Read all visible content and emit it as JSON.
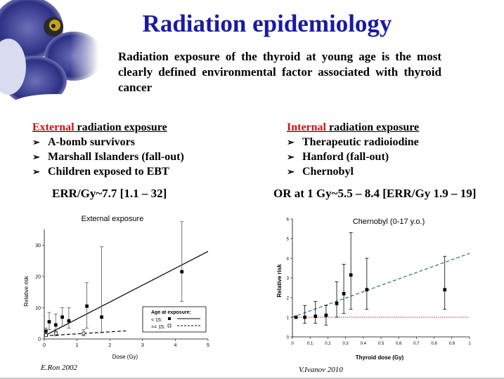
{
  "title": "Radiation epidemiology",
  "intro": "Radiation exposure of the thyroid at young age is the most clearly defined environmental factor associated with thyroid cancer",
  "external": {
    "highlight": "External",
    "heading_rest": " radiation exposure",
    "items": [
      "A-bomb survivors",
      "Marshall Islanders (fall-out)",
      "Children exposed to EBT"
    ],
    "estimate": "ERR/Gy~7.7  [1.1 – 32]",
    "credit": "E.Ron 2002"
  },
  "internal": {
    "highlight": "Internal",
    "heading_rest": " radiation exposure",
    "items": [
      "Therapeutic radioiodine",
      "Hanford (fall-out)",
      "Chernobyl"
    ],
    "estimate": "OR at 1 Gy~5.5 – 8.4 [ERR/Gy 1.9 – 19]",
    "credit": "V.Ivanov 2010"
  },
  "colors": {
    "title": "#1a1aa6",
    "highlight": "#d01010",
    "trend_internal": "#2a6e7a",
    "baseline": "#b22222"
  },
  "chart_data": [
    {
      "type": "scatter",
      "title": "External exposure",
      "xlabel": "Dose (Gy)",
      "ylabel": "Relative risk",
      "xlim": [
        0,
        5
      ],
      "ylim": [
        0,
        35
      ],
      "xticks": [
        "0",
        "1",
        "2",
        "3",
        "4",
        "5"
      ],
      "yticks": [
        "0",
        "10",
        "20",
        "30"
      ],
      "legend": {
        "title": "Age at exposure:",
        "entries": [
          "< 15:",
          ">= 15:"
        ],
        "position": "lower-right"
      },
      "series": [
        {
          "name": "< 15",
          "points": [
            {
              "x": 0.05,
              "y": 2.5,
              "lo": 1.5,
              "hi": 3.5
            },
            {
              "x": 0.15,
              "y": 5.5,
              "lo": 3.0,
              "hi": 8.5
            },
            {
              "x": 0.35,
              "y": 4.5,
              "lo": 2.5,
              "hi": 8.0
            },
            {
              "x": 0.55,
              "y": 7.0,
              "lo": 4.0,
              "hi": 10.0
            },
            {
              "x": 0.75,
              "y": 5.8,
              "lo": 3.5,
              "hi": 10.0
            },
            {
              "x": 1.3,
              "y": 10.5,
              "lo": 3.5,
              "hi": 18.0
            },
            {
              "x": 1.75,
              "y": 7.0,
              "lo": 2.0,
              "hi": 29.5
            },
            {
              "x": 4.2,
              "y": 21.5,
              "lo": 12.0,
              "hi": 37.5
            }
          ]
        },
        {
          "name": ">= 15",
          "points": [
            {
              "x": 0.05,
              "y": 1.2,
              "lo": 0.8,
              "hi": 1.7
            },
            {
              "x": 0.35,
              "y": 1.8,
              "lo": 1.0,
              "hi": 3.0
            },
            {
              "x": 1.2,
              "y": 1.8,
              "lo": 1.0,
              "hi": 3.0
            }
          ]
        }
      ],
      "trend_lines": [
        {
          "name": "< 15",
          "x": [
            0,
            5
          ],
          "y": [
            1,
            28
          ],
          "style": "solid"
        },
        {
          "name": ">= 15",
          "x": [
            0,
            2.5
          ],
          "y": [
            1,
            2.6
          ],
          "style": "dashed"
        }
      ]
    },
    {
      "type": "scatter",
      "title": "Chernobyl (0-17 y.o.)",
      "xlabel": "Thyroid dose (Gy)",
      "ylabel": "Relative risk",
      "xlim": [
        0,
        1
      ],
      "ylim": [
        0,
        6
      ],
      "xticks": [
        "0",
        "0.1",
        "0.2",
        "0.3",
        "0.4",
        "0.5",
        "0.6",
        "0.7",
        "0.8",
        "0.9",
        "1"
      ],
      "yticks": [
        "0",
        "1",
        "2",
        "3",
        "4",
        "5",
        "6"
      ],
      "series": [
        {
          "name": "Chernobyl",
          "points": [
            {
              "x": 0.02,
              "y": 1.0,
              "lo": 1.0,
              "hi": 1.0
            },
            {
              "x": 0.07,
              "y": 1.0,
              "lo": 0.7,
              "hi": 1.6
            },
            {
              "x": 0.13,
              "y": 1.05,
              "lo": 0.7,
              "hi": 1.8
            },
            {
              "x": 0.19,
              "y": 1.1,
              "lo": 0.6,
              "hi": 1.6
            },
            {
              "x": 0.25,
              "y": 1.7,
              "lo": 1.0,
              "hi": 2.8
            },
            {
              "x": 0.29,
              "y": 2.2,
              "lo": 1.2,
              "hi": 3.7
            },
            {
              "x": 0.33,
              "y": 3.15,
              "lo": 1.4,
              "hi": 5.3
            },
            {
              "x": 0.42,
              "y": 2.4,
              "lo": 1.4,
              "hi": 4.0
            },
            {
              "x": 0.86,
              "y": 2.4,
              "lo": 1.4,
              "hi": 4.1
            }
          ]
        }
      ],
      "trend_lines": [
        {
          "name": "fit",
          "x": [
            0.0,
            1.0
          ],
          "y": [
            1.0,
            4.25
          ],
          "style": "dashed"
        },
        {
          "name": "baseline",
          "x": [
            0.0,
            1.0
          ],
          "y": [
            1.0,
            1.0
          ],
          "style": "dotted"
        }
      ]
    }
  ]
}
